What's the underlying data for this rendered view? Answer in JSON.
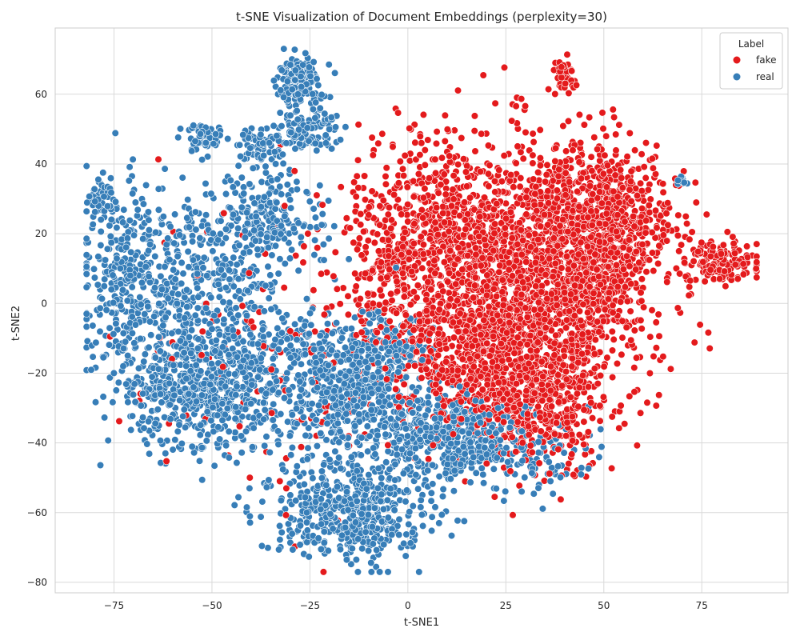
{
  "chart_data": {
    "type": "scatter",
    "title": "t-SNE Visualization of Document Embeddings (perplexity=30)",
    "xlabel": "t-SNE1",
    "ylabel": "t-SNE2",
    "xlim": [
      -90,
      97
    ],
    "ylim": [
      -83,
      79
    ],
    "xticks": [
      -75,
      -50,
      -25,
      0,
      25,
      50,
      75
    ],
    "yticks": [
      -80,
      -60,
      -40,
      -20,
      0,
      20,
      40,
      60
    ],
    "xtick_labels": [
      "−75",
      "−50",
      "−25",
      "0",
      "25",
      "50",
      "75"
    ],
    "ytick_labels": [
      "−80",
      "−60",
      "−40",
      "−20",
      "0",
      "20",
      "40",
      "60"
    ],
    "grid": true,
    "legend": {
      "title": "Label",
      "placement": "top-right",
      "entries": [
        {
          "name": "fake",
          "color": "#e41a1c"
        },
        {
          "name": "real",
          "color": "#377eb8"
        }
      ]
    },
    "series": [
      {
        "name": "fake",
        "color": "#e41a1c",
        "clusters": [
          {
            "cx": 30,
            "cy": 5,
            "sx": 16,
            "sy": 20,
            "n": 1500
          },
          {
            "cx": 45,
            "cy": 15,
            "sx": 9,
            "sy": 14,
            "n": 700
          },
          {
            "cx": 10,
            "cy": 20,
            "sx": 10,
            "sy": 14,
            "n": 500
          },
          {
            "cx": 20,
            "cy": -15,
            "sx": 11,
            "sy": 10,
            "n": 450
          },
          {
            "cx": 35,
            "cy": -30,
            "sx": 8,
            "sy": 8,
            "n": 320
          },
          {
            "cx": 55,
            "cy": 28,
            "sx": 7,
            "sy": 8,
            "n": 220
          },
          {
            "cx": 80,
            "cy": 12,
            "sx": 5,
            "sy": 3,
            "n": 140
          },
          {
            "cx": 40,
            "cy": 66,
            "sx": 1.6,
            "sy": 2.2,
            "n": 40
          },
          {
            "cx": -5,
            "cy": 10,
            "sx": 6,
            "sy": 15,
            "n": 180
          },
          {
            "cx": -30,
            "cy": -10,
            "sx": 22,
            "sy": 22,
            "n": 140
          }
        ]
      },
      {
        "name": "real",
        "color": "#377eb8",
        "clusters": [
          {
            "cx": -70,
            "cy": 5,
            "sx": 7,
            "sy": 14,
            "n": 380
          },
          {
            "cx": -55,
            "cy": -25,
            "sx": 9,
            "sy": 9,
            "n": 420
          },
          {
            "cx": -40,
            "cy": -20,
            "sx": 10,
            "sy": 12,
            "n": 420
          },
          {
            "cx": -15,
            "cy": -25,
            "sx": 8,
            "sy": 10,
            "n": 450
          },
          {
            "cx": -15,
            "cy": -60,
            "sx": 10,
            "sy": 7,
            "n": 480
          },
          {
            "cx": 10,
            "cy": -38,
            "sx": 10,
            "sy": 6,
            "n": 450
          },
          {
            "cx": -28,
            "cy": 64,
            "sx": 3,
            "sy": 3,
            "n": 160
          },
          {
            "cx": -25,
            "cy": 50,
            "sx": 4,
            "sy": 3,
            "n": 100
          },
          {
            "cx": -50,
            "cy": 12,
            "sx": 8,
            "sy": 10,
            "n": 250
          },
          {
            "cx": -35,
            "cy": 25,
            "sx": 6,
            "sy": 7,
            "n": 180
          },
          {
            "cx": -52,
            "cy": 48,
            "sx": 3,
            "sy": 2,
            "n": 60
          },
          {
            "cx": -38,
            "cy": 45,
            "sx": 4,
            "sy": 3,
            "n": 70
          },
          {
            "cx": -5,
            "cy": -15,
            "sx": 7,
            "sy": 6,
            "n": 120
          },
          {
            "cx": 30,
            "cy": -45,
            "sx": 8,
            "sy": 6,
            "n": 90
          },
          {
            "cx": 70,
            "cy": 35,
            "sx": 0.7,
            "sy": 0.8,
            "n": 15
          },
          {
            "cx": -78,
            "cy": 30,
            "sx": 2,
            "sy": 2.5,
            "n": 45
          }
        ]
      }
    ]
  }
}
